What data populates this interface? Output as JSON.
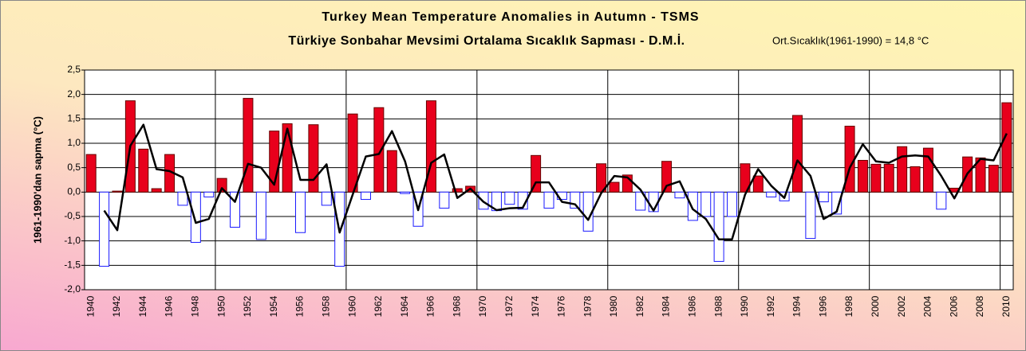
{
  "chart_data": {
    "type": "bar",
    "title": "Turkey Mean Temperature Anomalies in Autumn - TSMS",
    "subtitle": "Türkiye Sonbahar Mevsimi Ortalama Sıcaklık Sapması - D.M.İ.",
    "annotation": "Ort.Sıcaklık(1961-1990) = 14,8 °C",
    "y_label": "1961-1990'dan sapma (°C)",
    "categories": [
      "1940",
      null,
      "1942",
      null,
      "1944",
      null,
      "1946",
      null,
      "1948",
      null,
      "1950",
      null,
      "1952",
      null,
      "1954",
      null,
      "1956",
      null,
      "1958",
      null,
      "1960",
      null,
      "1962",
      null,
      "1964",
      null,
      "1966",
      null,
      "1968",
      null,
      "1970",
      null,
      "1972",
      null,
      "1974",
      null,
      "1976",
      null,
      "1978",
      null,
      "1980",
      null,
      "1982",
      null,
      "1984",
      null,
      "1986",
      null,
      "1988",
      null,
      "1990",
      null,
      "1992",
      null,
      "1994",
      null,
      "1996",
      null,
      "1998",
      null,
      "2000",
      null,
      "2002",
      null,
      "2004",
      null,
      "2006",
      null,
      "2008",
      null,
      "2010"
    ],
    "series": [
      {
        "type": "bar",
        "positive_color": "#e8001c",
        "negative_color": "#ffffff",
        "edge_color": "#1a1aff",
        "values": [
          0.77,
          -1.52,
          0.02,
          1.87,
          0.88,
          0.07,
          0.77,
          -0.27,
          -1.03,
          -0.1,
          0.28,
          -0.72,
          1.92,
          -0.97,
          1.25,
          1.4,
          -0.83,
          1.38,
          -0.27,
          -1.52,
          1.6,
          -0.15,
          1.73,
          0.85,
          -0.03,
          -0.7,
          1.87,
          -0.33,
          0.07,
          0.12,
          -0.35,
          -0.38,
          -0.25,
          -0.35,
          0.75,
          -0.33,
          -0.15,
          -0.33,
          -0.8,
          0.58,
          0.2,
          0.35,
          -0.37,
          -0.4,
          0.63,
          -0.12,
          -0.58,
          -0.5,
          -1.42,
          -0.5,
          0.58,
          0.33,
          -0.1,
          -0.18,
          1.57,
          -0.95,
          -0.2,
          -0.45,
          1.35,
          0.65,
          0.57,
          0.57,
          0.93,
          0.52,
          0.9,
          -0.35,
          0.08,
          0.72,
          0.7,
          0.55,
          1.83
        ]
      },
      {
        "type": "line",
        "color": "#000000",
        "values": [
          null,
          -0.38,
          -0.78,
          0.95,
          1.38,
          0.47,
          0.43,
          0.3,
          -0.63,
          -0.55,
          0.08,
          -0.2,
          0.58,
          0.5,
          0.15,
          1.3,
          0.25,
          0.25,
          0.57,
          -0.83,
          -0.05,
          0.73,
          0.78,
          1.25,
          0.63,
          -0.37,
          0.6,
          0.77,
          -0.12,
          0.07,
          -0.2,
          -0.37,
          -0.33,
          -0.32,
          0.2,
          0.2,
          -0.2,
          -0.25,
          -0.57,
          -0.02,
          0.33,
          0.3,
          0.05,
          -0.38,
          0.13,
          0.22,
          -0.35,
          -0.55,
          -0.97,
          -0.97,
          -0.05,
          0.47,
          0.13,
          -0.12,
          0.65,
          0.33,
          -0.55,
          -0.4,
          0.5,
          0.98,
          0.63,
          0.6,
          0.73,
          0.75,
          0.73,
          0.33,
          -0.13,
          0.38,
          0.68,
          0.65,
          1.2
        ]
      }
    ],
    "ylim": [
      -2.0,
      2.5
    ],
    "yticks": [
      {
        "value": -2.0,
        "label": "-2,0"
      },
      {
        "value": -1.5,
        "label": "-1,5"
      },
      {
        "value": -1.0,
        "label": "-1,0"
      },
      {
        "value": -0.5,
        "label": "-0,5"
      },
      {
        "value": 0.0,
        "label": "0,0"
      },
      {
        "value": 0.5,
        "label": "0,5"
      },
      {
        "value": 1.0,
        "label": "1,0"
      },
      {
        "value": 1.5,
        "label": "1,5"
      },
      {
        "value": 2.0,
        "label": "2,0"
      },
      {
        "value": 2.5,
        "label": "2,5"
      }
    ],
    "grid": true
  }
}
